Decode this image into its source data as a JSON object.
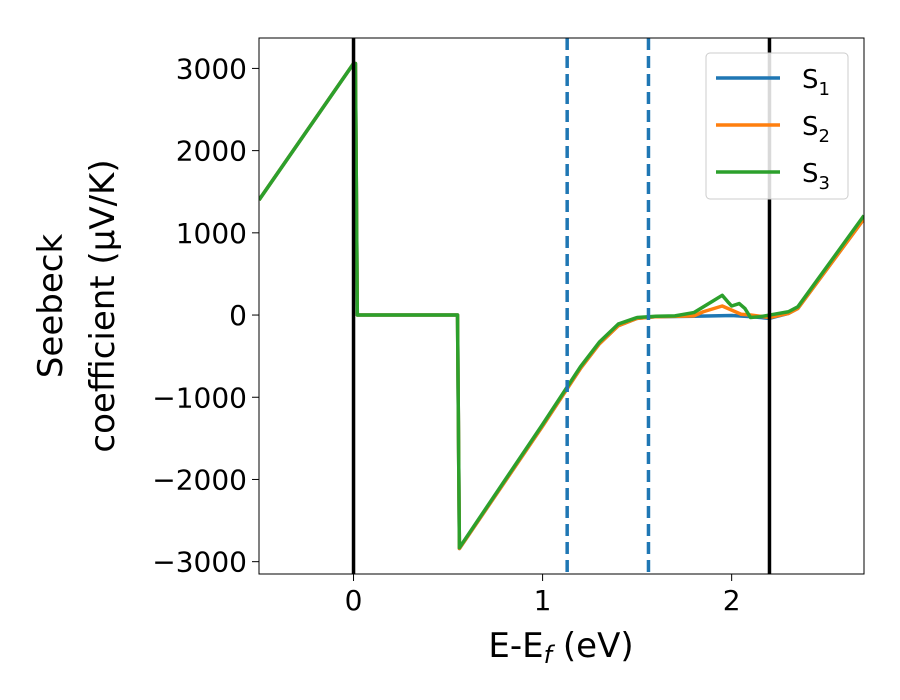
{
  "chart_data": {
    "type": "line",
    "xlabel": "E-E",
    "xlabel_sub": "f",
    "xlabel_unit": " (eV)",
    "ylabel_line1": "Seebeck",
    "ylabel_line2": "coefficient  (μV/K)",
    "xlim": [
      -0.5,
      2.7
    ],
    "ylim": [
      -3150,
      3370
    ],
    "xticks": [
      0,
      1,
      2
    ],
    "xtick_labels": [
      "0",
      "1",
      "2"
    ],
    "yticks": [
      -3000,
      -2000,
      -1000,
      0,
      1000,
      2000,
      3000
    ],
    "ytick_labels": [
      "−3000",
      "−2000",
      "−1000",
      "0",
      "1000",
      "2000",
      "3000"
    ],
    "grid": false,
    "legend_position": "top-right",
    "vlines": [
      {
        "x": 0.0,
        "style": "solid",
        "color": "#000000"
      },
      {
        "x": 2.2,
        "style": "solid",
        "color": "#000000"
      },
      {
        "x": 1.13,
        "style": "dashed",
        "color": "#1f77b4"
      },
      {
        "x": 1.56,
        "style": "dashed",
        "color": "#1f77b4"
      }
    ],
    "series": [
      {
        "name": "S",
        "sub": "1",
        "color": "#1f77b4",
        "points": [
          [
            -0.5,
            1400
          ],
          [
            0.0,
            3060
          ],
          [
            0.01,
            3060
          ],
          [
            0.02,
            0
          ],
          [
            0.55,
            0
          ],
          [
            0.56,
            -2840
          ],
          [
            1.0,
            -1350
          ],
          [
            1.2,
            -650
          ],
          [
            1.3,
            -350
          ],
          [
            1.4,
            -130
          ],
          [
            1.5,
            -40
          ],
          [
            1.6,
            -20
          ],
          [
            1.8,
            -15
          ],
          [
            1.9,
            -10
          ],
          [
            2.0,
            -5
          ],
          [
            2.1,
            -20
          ],
          [
            2.2,
            -40
          ],
          [
            2.3,
            20
          ],
          [
            2.35,
            80
          ],
          [
            2.7,
            1170
          ]
        ]
      },
      {
        "name": "S",
        "sub": "2",
        "color": "#ff7f0e",
        "points": [
          [
            -0.5,
            1400
          ],
          [
            0.0,
            3060
          ],
          [
            0.01,
            3060
          ],
          [
            0.02,
            0
          ],
          [
            0.55,
            0
          ],
          [
            0.56,
            -2840
          ],
          [
            1.0,
            -1350
          ],
          [
            1.2,
            -650
          ],
          [
            1.3,
            -350
          ],
          [
            1.4,
            -130
          ],
          [
            1.5,
            -40
          ],
          [
            1.6,
            -20
          ],
          [
            1.8,
            -10
          ],
          [
            1.85,
            40
          ],
          [
            1.95,
            110
          ],
          [
            2.0,
            60
          ],
          [
            2.05,
            10
          ],
          [
            2.1,
            0
          ],
          [
            2.2,
            -30
          ],
          [
            2.3,
            20
          ],
          [
            2.35,
            80
          ],
          [
            2.7,
            1170
          ]
        ]
      },
      {
        "name": "S",
        "sub": "3",
        "color": "#2ca02c",
        "points": [
          [
            -0.5,
            1400
          ],
          [
            0.0,
            3060
          ],
          [
            0.01,
            3060
          ],
          [
            0.02,
            0
          ],
          [
            0.55,
            0
          ],
          [
            0.56,
            -2830
          ],
          [
            1.0,
            -1330
          ],
          [
            1.2,
            -630
          ],
          [
            1.3,
            -330
          ],
          [
            1.4,
            -110
          ],
          [
            1.5,
            -30
          ],
          [
            1.6,
            -15
          ],
          [
            1.7,
            -10
          ],
          [
            1.8,
            30
          ],
          [
            1.9,
            170
          ],
          [
            1.95,
            240
          ],
          [
            1.98,
            160
          ],
          [
            2.0,
            110
          ],
          [
            2.04,
            140
          ],
          [
            2.07,
            80
          ],
          [
            2.1,
            -30
          ],
          [
            2.15,
            -20
          ],
          [
            2.2,
            0
          ],
          [
            2.3,
            40
          ],
          [
            2.35,
            100
          ],
          [
            2.7,
            1210
          ]
        ]
      }
    ]
  }
}
